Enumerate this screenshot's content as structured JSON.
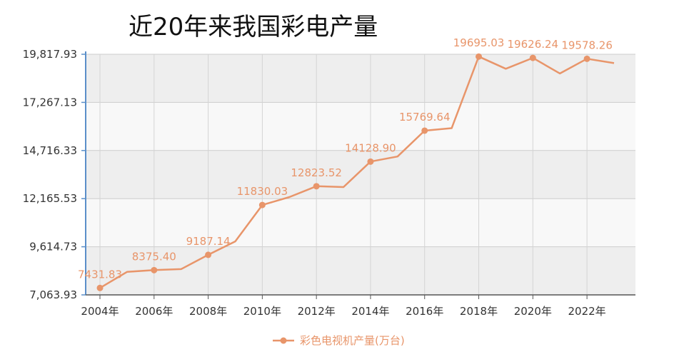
{
  "title": "近20年来我国彩电产量",
  "chart_data": {
    "type": "line",
    "title": "近20年来我国彩电产量",
    "x": [
      2004,
      2005,
      2006,
      2007,
      2008,
      2009,
      2010,
      2011,
      2012,
      2013,
      2014,
      2015,
      2016,
      2017,
      2018,
      2019,
      2020,
      2021,
      2022,
      2023
    ],
    "x_tick_labels": [
      "2004年",
      "2006年",
      "2008年",
      "2010年",
      "2012年",
      "2014年",
      "2016年",
      "2018年",
      "2020年",
      "2022年"
    ],
    "y_tick_labels": [
      "7,063.93",
      "9,614.73",
      "12,165.53",
      "14,716.33",
      "17,267.13",
      "19,817.93"
    ],
    "ylim": [
      7063.93,
      19817.93
    ],
    "grid": true,
    "legend_position": "bottom",
    "series": [
      {
        "name": "彩色电视机产量(万台)",
        "color": "#e8956a",
        "values": [
          7431.83,
          8283,
          8375.4,
          8430,
          9187.14,
          9900,
          11830.03,
          12250,
          12823.52,
          12780,
          14128.9,
          14400,
          15769.64,
          15900,
          19695.03,
          19050,
          19626.24,
          18800,
          19578.26,
          19350
        ]
      }
    ],
    "data_labels": [
      {
        "year": 2004,
        "text": "7431.83"
      },
      {
        "year": 2006,
        "text": "8375.40"
      },
      {
        "year": 2008,
        "text": "9187.14"
      },
      {
        "year": 2010,
        "text": "11830.03"
      },
      {
        "year": 2012,
        "text": "12823.52"
      },
      {
        "year": 2014,
        "text": "14128.90"
      },
      {
        "year": 2016,
        "text": "15769.64"
      },
      {
        "year": 2018,
        "text": "19695.03"
      },
      {
        "year": 2020,
        "text": "19626.24"
      },
      {
        "year": 2022,
        "text": "19578.26"
      }
    ]
  }
}
